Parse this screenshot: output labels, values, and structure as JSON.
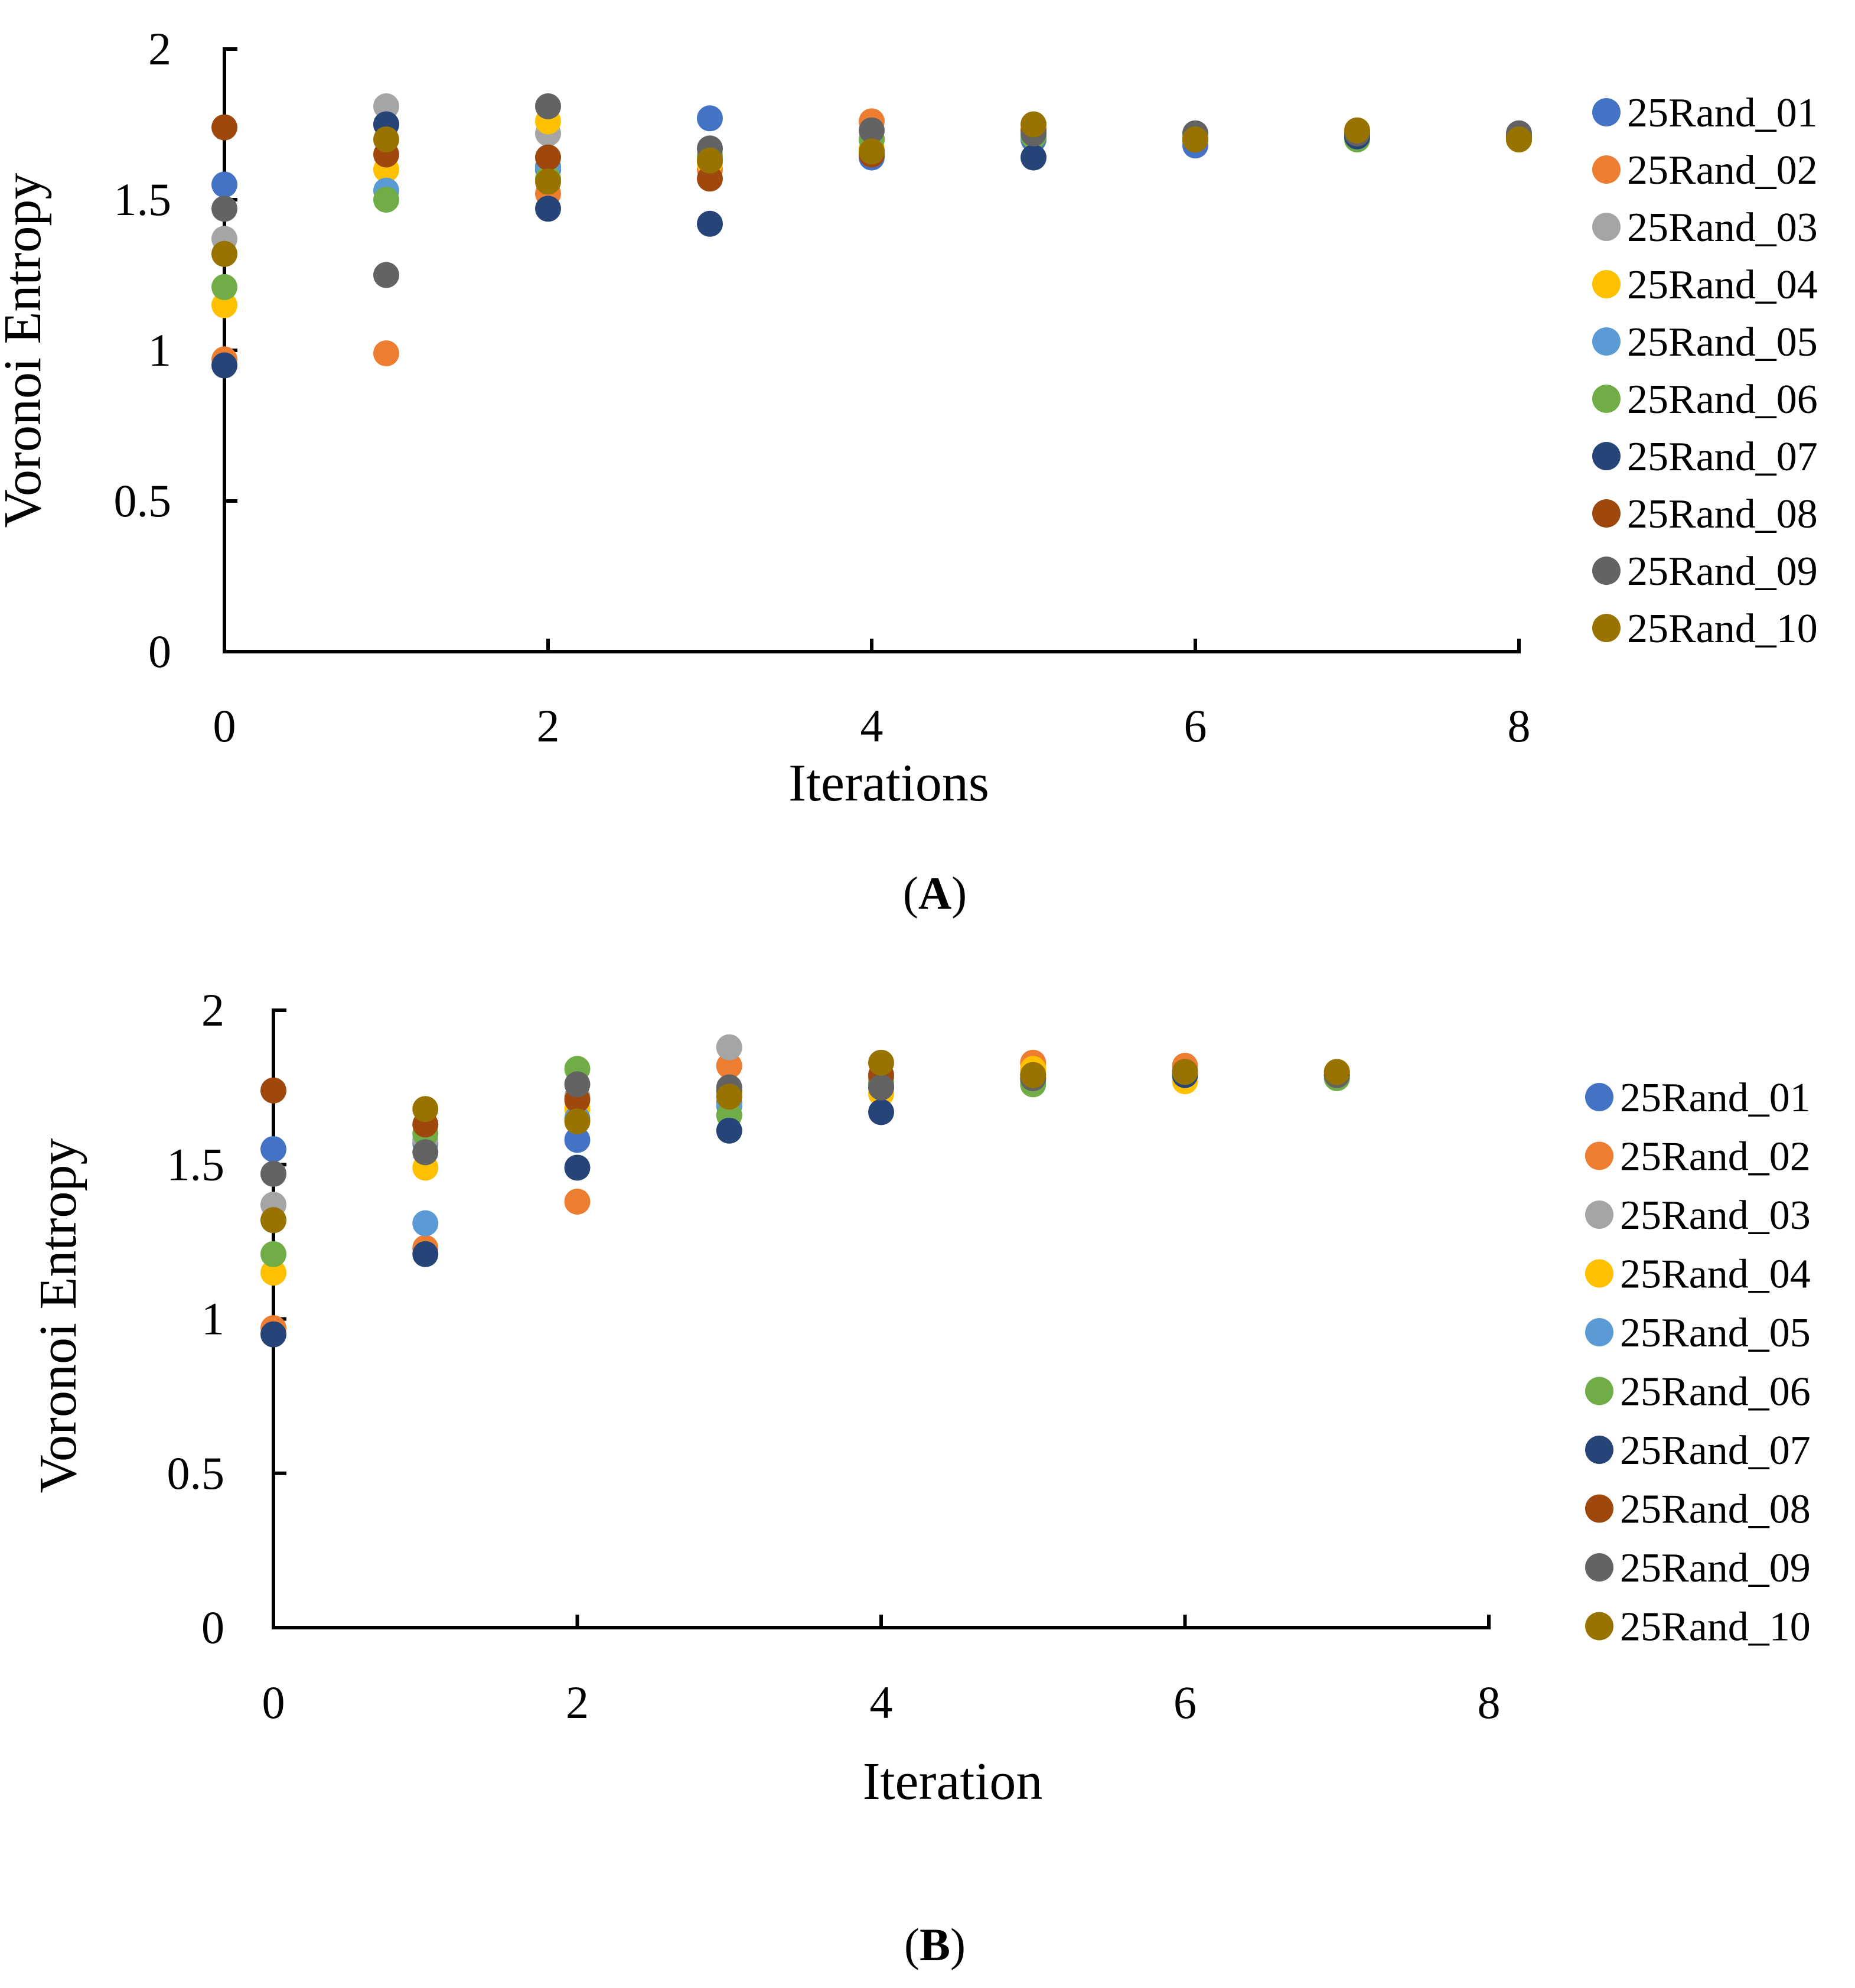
{
  "series_colors": {
    "25Rand_01": "#4472C4",
    "25Rand_02": "#ED7D31",
    "25Rand_03": "#A5A5A5",
    "25Rand_04": "#FFC000",
    "25Rand_05": "#5B9BD5",
    "25Rand_06": "#70AD47",
    "25Rand_07": "#264478",
    "25Rand_08": "#9E480E",
    "25Rand_09": "#636363",
    "25Rand_10": "#997300"
  },
  "chart_data": [
    {
      "type": "scatter",
      "panel_label_open": "(",
      "panel_label_letter": "A",
      "panel_label_close": ")",
      "xlabel": "Iterations",
      "ylabel": "Voronoi Entropy",
      "xlim": [
        0,
        8
      ],
      "ylim": [
        0,
        2
      ],
      "xticks": [
        "0",
        "2",
        "4",
        "6",
        "8"
      ],
      "yticks": [
        "0",
        "0.5",
        "1",
        "1.5",
        "2"
      ],
      "grid": false,
      "legend_position": "right",
      "series": [
        {
          "name": "25Rand_01",
          "x": [
            0,
            1,
            2,
            3,
            4,
            5,
            6,
            7,
            8
          ],
          "y": [
            1.55,
            1.75,
            1.6,
            1.77,
            1.64,
            1.7,
            1.68,
            1.71,
            1.71
          ]
        },
        {
          "name": "25Rand_02",
          "x": [
            0,
            1,
            2,
            3,
            4,
            5,
            6,
            7,
            8
          ],
          "y": [
            0.97,
            0.99,
            1.52,
            1.6,
            1.76,
            1.73,
            1.7,
            1.71,
            1.7
          ]
        },
        {
          "name": "25Rand_03",
          "x": [
            0,
            1,
            2,
            3,
            4,
            5,
            6,
            7,
            8
          ],
          "y": [
            1.37,
            1.81,
            1.72,
            1.65,
            1.7,
            1.72,
            1.72,
            1.72,
            1.72
          ]
        },
        {
          "name": "25Rand_04",
          "x": [
            0,
            1,
            2,
            3,
            4,
            5,
            6,
            7,
            8
          ],
          "y": [
            1.15,
            1.6,
            1.76,
            1.62,
            1.67,
            1.73,
            1.7,
            1.72,
            1.7
          ]
        },
        {
          "name": "25Rand_05",
          "x": [
            0,
            1,
            2,
            3,
            4,
            5,
            6,
            7,
            8
          ],
          "y": [
            1.32,
            1.53,
            1.61,
            1.63,
            1.7,
            1.71,
            1.7,
            1.71,
            1.71
          ]
        },
        {
          "name": "25Rand_06",
          "x": [
            0,
            1,
            2,
            3,
            4,
            5,
            6,
            7,
            8
          ],
          "y": [
            1.21,
            1.5,
            1.57,
            1.64,
            1.7,
            1.71,
            1.7,
            1.7,
            1.7
          ]
        },
        {
          "name": "25Rand_07",
          "x": [
            0,
            1,
            2,
            3,
            4,
            5,
            6,
            7,
            8
          ],
          "y": [
            0.95,
            1.75,
            1.47,
            1.42,
            1.65,
            1.64,
            1.7,
            1.71,
            1.71
          ]
        },
        {
          "name": "25Rand_08",
          "x": [
            0,
            1,
            2,
            3,
            4,
            5,
            6,
            7,
            8
          ],
          "y": [
            1.74,
            1.65,
            1.64,
            1.57,
            1.65,
            1.73,
            1.7,
            1.72,
            1.71
          ]
        },
        {
          "name": "25Rand_09",
          "x": [
            0,
            1,
            2,
            3,
            4,
            5,
            6,
            7,
            8
          ],
          "y": [
            1.47,
            1.25,
            1.81,
            1.67,
            1.73,
            1.72,
            1.72,
            1.72,
            1.72
          ]
        },
        {
          "name": "25Rand_10",
          "x": [
            0,
            1,
            2,
            3,
            4,
            5,
            6,
            7,
            8
          ],
          "y": [
            1.32,
            1.7,
            1.56,
            1.63,
            1.66,
            1.75,
            1.7,
            1.73,
            1.7
          ]
        }
      ]
    },
    {
      "type": "scatter",
      "panel_label_open": "(",
      "panel_label_letter": "B",
      "panel_label_close": ")",
      "xlabel": "Iteration",
      "ylabel": "Voronoi Entropy",
      "xlim": [
        0,
        8
      ],
      "ylim": [
        0,
        2
      ],
      "xticks": [
        "0",
        "2",
        "4",
        "6",
        "8"
      ],
      "yticks": [
        "0",
        "0.5",
        "1",
        "1.5",
        "2"
      ],
      "grid": false,
      "legend_position": "right",
      "series": [
        {
          "name": "25Rand_01",
          "x": [
            0,
            1,
            2,
            3,
            4,
            5,
            6,
            7
          ],
          "y": [
            1.55,
            1.57,
            1.58,
            1.7,
            1.75,
            1.78,
            1.79,
            1.79
          ]
        },
        {
          "name": "25Rand_02",
          "x": [
            0,
            1,
            2,
            3,
            4,
            5,
            6,
            7
          ],
          "y": [
            0.97,
            1.23,
            1.38,
            1.82,
            1.78,
            1.83,
            1.82,
            1.8
          ]
        },
        {
          "name": "25Rand_03",
          "x": [
            0,
            1,
            2,
            3,
            4,
            5,
            6,
            7
          ],
          "y": [
            1.37,
            1.58,
            1.72,
            1.88,
            1.77,
            1.79,
            1.8,
            1.8
          ]
        },
        {
          "name": "25Rand_04",
          "x": [
            0,
            1,
            2,
            3,
            4,
            5,
            6,
            7
          ],
          "y": [
            1.15,
            1.49,
            1.68,
            1.73,
            1.73,
            1.81,
            1.77,
            1.8
          ]
        },
        {
          "name": "25Rand_05",
          "x": [
            0,
            1,
            2,
            3,
            4,
            5,
            6,
            7
          ],
          "y": [
            1.32,
            1.31,
            1.65,
            1.69,
            1.76,
            1.77,
            1.79,
            1.79
          ]
        },
        {
          "name": "25Rand_06",
          "x": [
            0,
            1,
            2,
            3,
            4,
            5,
            6,
            7
          ],
          "y": [
            1.21,
            1.6,
            1.81,
            1.66,
            1.76,
            1.76,
            1.79,
            1.78
          ]
        },
        {
          "name": "25Rand_07",
          "x": [
            0,
            1,
            2,
            3,
            4,
            5,
            6,
            7
          ],
          "y": [
            0.95,
            1.21,
            1.49,
            1.61,
            1.67,
            1.78,
            1.79,
            1.79
          ]
        },
        {
          "name": "25Rand_08",
          "x": [
            0,
            1,
            2,
            3,
            4,
            5,
            6,
            7
          ],
          "y": [
            1.74,
            1.63,
            1.71,
            1.74,
            1.79,
            1.79,
            1.8,
            1.79
          ]
        },
        {
          "name": "25Rand_09",
          "x": [
            0,
            1,
            2,
            3,
            4,
            5,
            6,
            7
          ],
          "y": [
            1.47,
            1.54,
            1.76,
            1.75,
            1.75,
            1.78,
            1.8,
            1.79
          ]
        },
        {
          "name": "25Rand_10",
          "x": [
            0,
            1,
            2,
            3,
            4,
            5,
            6,
            7
          ],
          "y": [
            1.32,
            1.68,
            1.64,
            1.72,
            1.83,
            1.79,
            1.8,
            1.8
          ]
        }
      ]
    }
  ]
}
